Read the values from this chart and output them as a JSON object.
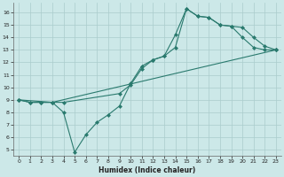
{
  "title": "",
  "xlabel": "Humidex (Indice chaleur)",
  "ylabel": "",
  "bg_color": "#cce8e8",
  "grid_color": "#aacccc",
  "line_color": "#2a7a6e",
  "xlim": [
    -0.5,
    23.5
  ],
  "ylim": [
    4.5,
    16.8
  ],
  "xticks": [
    0,
    1,
    2,
    3,
    4,
    5,
    6,
    7,
    8,
    9,
    10,
    11,
    12,
    13,
    14,
    15,
    16,
    17,
    18,
    19,
    20,
    21,
    22,
    23
  ],
  "yticks": [
    5,
    6,
    7,
    8,
    9,
    10,
    11,
    12,
    13,
    14,
    15,
    16
  ],
  "line1_x": [
    0,
    1,
    2,
    3,
    4,
    9,
    10,
    11,
    12,
    13,
    14,
    15,
    16,
    17,
    18,
    19,
    20,
    21,
    22,
    23
  ],
  "line1_y": [
    9.0,
    8.8,
    8.8,
    8.8,
    8.8,
    9.5,
    10.2,
    11.5,
    12.2,
    12.5,
    13.2,
    16.3,
    15.7,
    15.6,
    15.0,
    14.9,
    14.8,
    14.0,
    13.3,
    13.0
  ],
  "line2_x": [
    0,
    1,
    2,
    3,
    4,
    5,
    6,
    7,
    8,
    9,
    10,
    11,
    12,
    13,
    14,
    15,
    16,
    17,
    18,
    19,
    20,
    21,
    22,
    23
  ],
  "line2_y": [
    9.0,
    8.8,
    8.8,
    8.8,
    8.0,
    4.8,
    6.2,
    7.2,
    7.8,
    8.5,
    10.3,
    11.7,
    12.2,
    12.5,
    14.2,
    16.3,
    15.7,
    15.6,
    15.0,
    14.9,
    14.0,
    13.2,
    13.0,
    13.0
  ],
  "line3_x": [
    0,
    3,
    23
  ],
  "line3_y": [
    9.0,
    8.8,
    13.0
  ],
  "marker": "D",
  "markersize": 2,
  "linewidth": 0.8
}
